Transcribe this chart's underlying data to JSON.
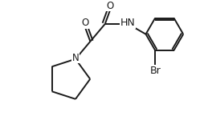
{
  "background_color": "#ffffff",
  "line_color": "#1a1a1a",
  "atom_color": "#1a1a1a",
  "o_color": "#1a1a1a",
  "n_color": "#1a1a1a",
  "br_color": "#1a1a1a",
  "line_width": 1.4,
  "font_size": 8.5,
  "fig_width": 2.55,
  "fig_height": 1.55,
  "dpi": 100,
  "xlim": [
    0.0,
    1.0
  ],
  "ylim": [
    0.0,
    1.0
  ]
}
